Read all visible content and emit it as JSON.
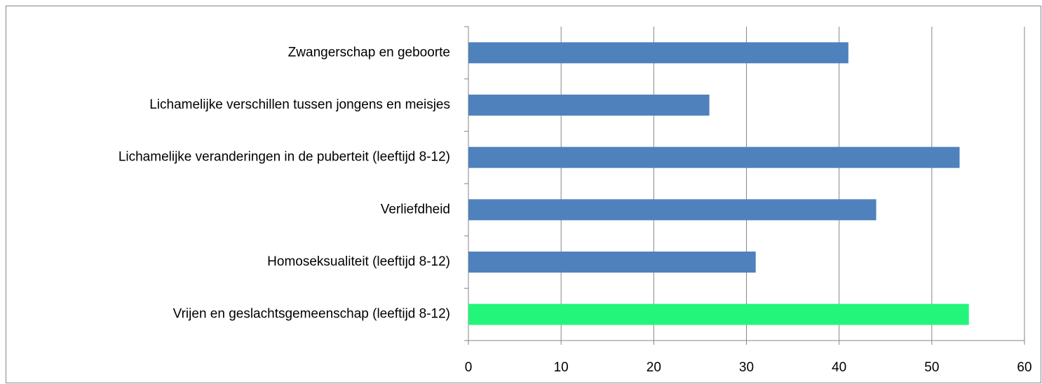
{
  "chart_data": {
    "type": "barh",
    "categories": [
      "Zwangerschap en geboorte",
      "Lichamelijke verschillen tussen jongens en meisjes",
      "Lichamelijke veranderingen in de puberteit (leeftijd 8-12)",
      "Verliefdheid",
      "Homoseksualiteit (leeftijd 8-12)",
      "Vrijen en geslachtsgemeenschap (leeftijd 8-12)"
    ],
    "values": [
      41,
      26,
      53,
      44,
      31,
      54
    ],
    "colors": [
      "#4f81bd",
      "#4f81bd",
      "#4f81bd",
      "#4f81bd",
      "#4f81bd",
      "#23f57a"
    ],
    "xlim": [
      0,
      60
    ],
    "xticks": [
      0,
      10,
      20,
      30,
      40,
      50,
      60
    ],
    "grid": true
  }
}
